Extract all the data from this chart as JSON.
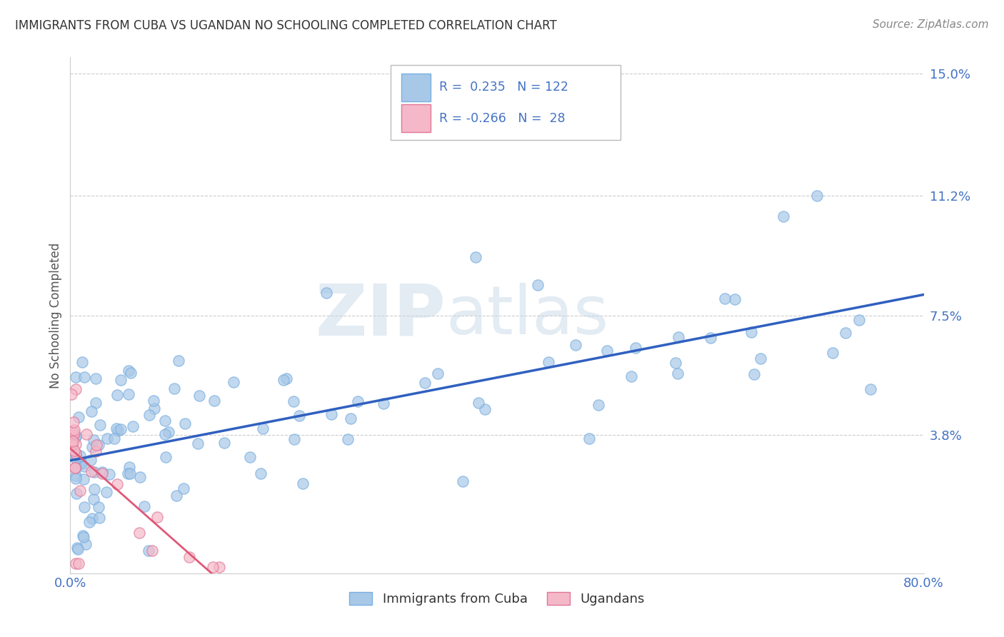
{
  "title": "IMMIGRANTS FROM CUBA VS UGANDAN NO SCHOOLING COMPLETED CORRELATION CHART",
  "source": "Source: ZipAtlas.com",
  "ylabel": "No Schooling Completed",
  "legend_labels": [
    "Immigrants from Cuba",
    "Ugandans"
  ],
  "xlim": [
    0.0,
    0.8
  ],
  "ylim": [
    -0.005,
    0.155
  ],
  "yticks": [
    0.038,
    0.075,
    0.112,
    0.15
  ],
  "ytick_labels": [
    "3.8%",
    "7.5%",
    "11.2%",
    "15.0%"
  ],
  "blue_color": "#a8c8e8",
  "blue_edge": "#7aafe0",
  "pink_color": "#f5b8c8",
  "pink_edge": "#e07898",
  "trend_blue": "#3060c0",
  "trend_pink": "#e05878",
  "r_blue": 0.235,
  "n_blue": 122,
  "r_pink": -0.266,
  "n_pink": 28,
  "watermark_zip": "ZIP",
  "watermark_atlas": "atlas",
  "background_color": "#ffffff",
  "grid_color": "#cccccc",
  "tick_label_color": "#4472c4",
  "legend_text_color": "#4472c4",
  "title_color": "#333333"
}
